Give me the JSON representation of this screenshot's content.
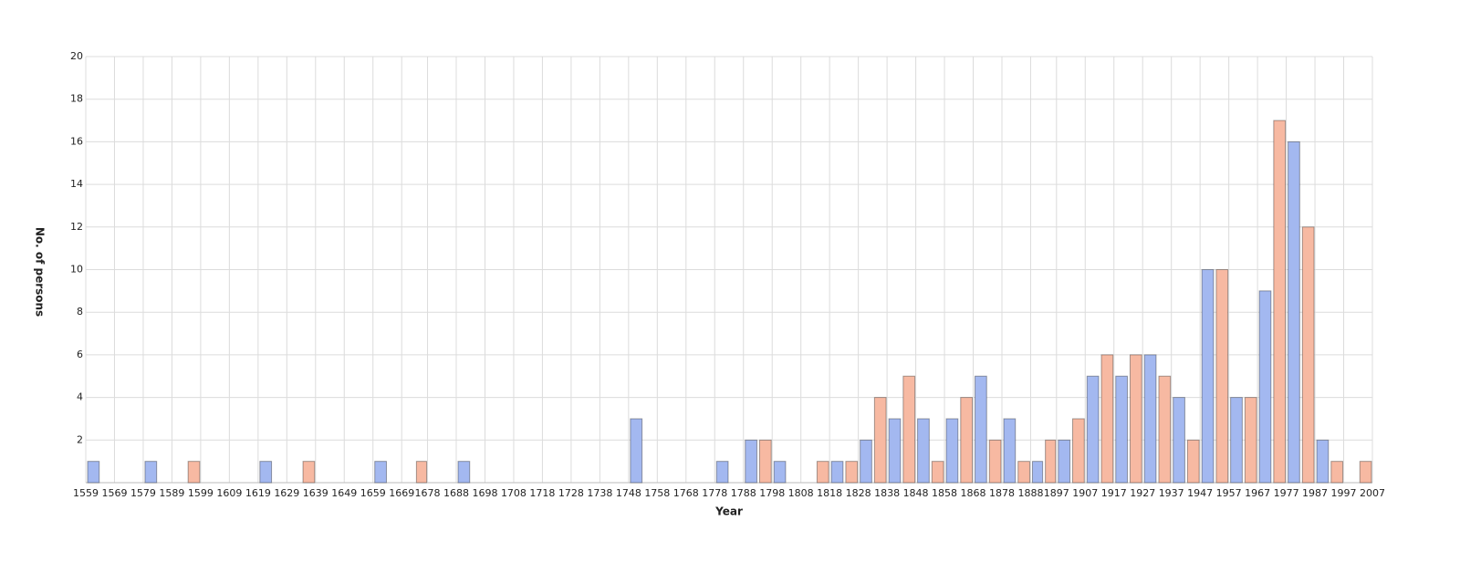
{
  "chart_data": {
    "type": "histogram",
    "x_label": "Year",
    "y_label": "No. of persons",
    "bins": [
      1559,
      1569,
      1579,
      1589,
      1599,
      1609,
      1619,
      1629,
      1639,
      1649,
      1659,
      1669,
      1678,
      1688,
      1698,
      1708,
      1718,
      1728,
      1738,
      1748,
      1758,
      1768,
      1778,
      1788,
      1798,
      1808,
      1818,
      1828,
      1838,
      1848,
      1858,
      1868,
      1878,
      1888,
      1897,
      1907,
      1917,
      1927,
      1937,
      1947,
      1957,
      1967,
      1977,
      1987,
      1997,
      2007
    ],
    "series": [
      {
        "color": "#a3b8f0",
        "values": [
          1,
          0,
          1,
          0,
          0,
          0,
          1,
          0,
          0,
          0,
          1,
          0,
          0,
          1,
          0,
          0,
          0,
          0,
          0,
          3,
          0,
          0,
          1,
          2,
          1,
          0,
          1,
          2,
          3,
          3,
          3,
          5,
          3,
          1,
          2,
          5,
          5,
          6,
          4,
          10,
          4,
          9,
          16,
          2,
          0
        ]
      },
      {
        "color": "#f7b9a2",
        "values": [
          0,
          0,
          0,
          1,
          0,
          0,
          0,
          1,
          0,
          0,
          0,
          1,
          0,
          0,
          0,
          0,
          0,
          0,
          0,
          0,
          0,
          0,
          0,
          2,
          0,
          1,
          1,
          4,
          5,
          1,
          4,
          2,
          1,
          2,
          3,
          6,
          6,
          5,
          2,
          10,
          4,
          17,
          12,
          1,
          1
        ]
      }
    ],
    "xlim": [
      1559,
      2007
    ],
    "ylim": [
      0,
      20
    ],
    "yticks": [
      2,
      4,
      6,
      8,
      10,
      12,
      14,
      16,
      18,
      20
    ],
    "grid": true
  }
}
